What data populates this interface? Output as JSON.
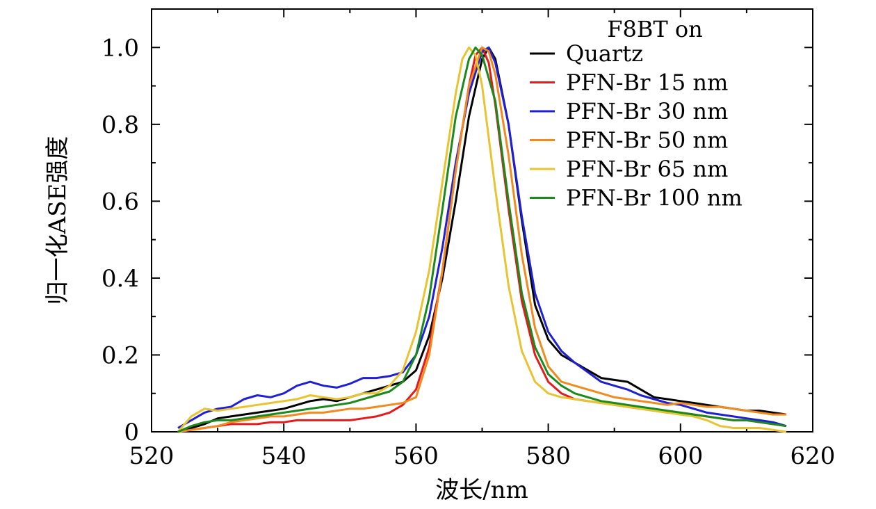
{
  "chart_data": {
    "type": "line",
    "xlabel": "波长/nm",
    "ylabel": "归一化ASE强度",
    "xlim": [
      520,
      620
    ],
    "ylim": [
      0,
      1.1
    ],
    "xticks": [
      "520",
      "540",
      "560",
      "580",
      "600",
      "620"
    ],
    "yticks": [
      "0",
      "0.2",
      "0.4",
      "0.6",
      "0.8",
      "1.0"
    ],
    "grid": false,
    "legend": {
      "title": "F8BT on",
      "position": "top-right"
    },
    "series": [
      {
        "name": "Quartz",
        "color": "#000000",
        "points": [
          [
            524,
            0.0
          ],
          [
            526,
            0.01
          ],
          [
            528,
            0.02
          ],
          [
            530,
            0.035
          ],
          [
            532,
            0.04
          ],
          [
            534,
            0.045
          ],
          [
            536,
            0.05
          ],
          [
            538,
            0.055
          ],
          [
            540,
            0.06
          ],
          [
            542,
            0.07
          ],
          [
            544,
            0.08
          ],
          [
            546,
            0.085
          ],
          [
            548,
            0.08
          ],
          [
            550,
            0.09
          ],
          [
            552,
            0.1
          ],
          [
            554,
            0.11
          ],
          [
            556,
            0.12
          ],
          [
            558,
            0.13
          ],
          [
            560,
            0.16
          ],
          [
            562,
            0.25
          ],
          [
            564,
            0.4
          ],
          [
            566,
            0.6
          ],
          [
            568,
            0.82
          ],
          [
            570,
            0.97
          ],
          [
            571,
            1.0
          ],
          [
            572,
            0.97
          ],
          [
            574,
            0.8
          ],
          [
            576,
            0.55
          ],
          [
            578,
            0.33
          ],
          [
            580,
            0.24
          ],
          [
            582,
            0.2
          ],
          [
            584,
            0.18
          ],
          [
            586,
            0.16
          ],
          [
            588,
            0.14
          ],
          [
            590,
            0.135
          ],
          [
            592,
            0.13
          ],
          [
            594,
            0.11
          ],
          [
            596,
            0.09
          ],
          [
            598,
            0.085
          ],
          [
            600,
            0.08
          ],
          [
            602,
            0.075
          ],
          [
            604,
            0.07
          ],
          [
            606,
            0.065
          ],
          [
            608,
            0.06
          ],
          [
            610,
            0.055
          ],
          [
            612,
            0.055
          ],
          [
            614,
            0.05
          ],
          [
            616,
            0.045
          ]
        ]
      },
      {
        "name": "PFN-Br 15 nm",
        "color": "#e41a1c",
        "points": [
          [
            524,
            0.0
          ],
          [
            526,
            0.005
          ],
          [
            528,
            0.01
          ],
          [
            530,
            0.015
          ],
          [
            532,
            0.02
          ],
          [
            534,
            0.02
          ],
          [
            536,
            0.02
          ],
          [
            538,
            0.025
          ],
          [
            540,
            0.025
          ],
          [
            542,
            0.03
          ],
          [
            544,
            0.03
          ],
          [
            546,
            0.03
          ],
          [
            548,
            0.03
          ],
          [
            550,
            0.03
          ],
          [
            552,
            0.035
          ],
          [
            554,
            0.04
          ],
          [
            556,
            0.05
          ],
          [
            558,
            0.07
          ],
          [
            560,
            0.11
          ],
          [
            562,
            0.22
          ],
          [
            564,
            0.42
          ],
          [
            566,
            0.68
          ],
          [
            568,
            0.9
          ],
          [
            569,
            0.98
          ],
          [
            570,
            1.0
          ],
          [
            571,
            0.96
          ],
          [
            572,
            0.85
          ],
          [
            574,
            0.58
          ],
          [
            576,
            0.34
          ],
          [
            578,
            0.2
          ],
          [
            580,
            0.13
          ],
          [
            582,
            0.1
          ],
          [
            584,
            0.085
          ],
          [
            586,
            0.08
          ],
          [
            588,
            0.075
          ],
          [
            590,
            0.07
          ],
          [
            592,
            0.065
          ],
          [
            594,
            0.06
          ],
          [
            596,
            0.055
          ],
          [
            598,
            0.05
          ],
          [
            600,
            0.05
          ],
          [
            602,
            0.045
          ],
          [
            604,
            0.04
          ],
          [
            606,
            0.035
          ],
          [
            608,
            0.03
          ],
          [
            610,
            0.03
          ],
          [
            612,
            0.025
          ],
          [
            614,
            0.02
          ],
          [
            616,
            0.015
          ]
        ]
      },
      {
        "name": "PFN-Br 30 nm",
        "color": "#1f1fd6",
        "points": [
          [
            524,
            0.01
          ],
          [
            526,
            0.03
          ],
          [
            528,
            0.05
          ],
          [
            530,
            0.06
          ],
          [
            532,
            0.065
          ],
          [
            534,
            0.085
          ],
          [
            536,
            0.095
          ],
          [
            538,
            0.09
          ],
          [
            540,
            0.1
          ],
          [
            542,
            0.12
          ],
          [
            544,
            0.13
          ],
          [
            546,
            0.12
          ],
          [
            548,
            0.115
          ],
          [
            550,
            0.125
          ],
          [
            552,
            0.14
          ],
          [
            554,
            0.14
          ],
          [
            556,
            0.145
          ],
          [
            558,
            0.155
          ],
          [
            560,
            0.2
          ],
          [
            562,
            0.3
          ],
          [
            564,
            0.48
          ],
          [
            566,
            0.7
          ],
          [
            568,
            0.88
          ],
          [
            570,
            0.99
          ],
          [
            571,
            1.0
          ],
          [
            572,
            0.96
          ],
          [
            574,
            0.8
          ],
          [
            576,
            0.56
          ],
          [
            578,
            0.36
          ],
          [
            580,
            0.26
          ],
          [
            582,
            0.21
          ],
          [
            584,
            0.18
          ],
          [
            586,
            0.155
          ],
          [
            588,
            0.13
          ],
          [
            590,
            0.12
          ],
          [
            592,
            0.11
          ],
          [
            594,
            0.095
          ],
          [
            596,
            0.085
          ],
          [
            598,
            0.075
          ],
          [
            600,
            0.07
          ],
          [
            602,
            0.06
          ],
          [
            604,
            0.05
          ],
          [
            606,
            0.045
          ],
          [
            608,
            0.04
          ],
          [
            610,
            0.035
          ],
          [
            612,
            0.03
          ],
          [
            614,
            0.025
          ],
          [
            616,
            0.015
          ]
        ]
      },
      {
        "name": "PFN-Br 50 nm",
        "color": "#f28a1e",
        "points": [
          [
            524,
            0.0
          ],
          [
            526,
            0.005
          ],
          [
            528,
            0.01
          ],
          [
            530,
            0.015
          ],
          [
            532,
            0.025
          ],
          [
            534,
            0.03
          ],
          [
            536,
            0.035
          ],
          [
            538,
            0.04
          ],
          [
            540,
            0.04
          ],
          [
            542,
            0.045
          ],
          [
            544,
            0.05
          ],
          [
            546,
            0.05
          ],
          [
            548,
            0.055
          ],
          [
            550,
            0.06
          ],
          [
            552,
            0.06
          ],
          [
            554,
            0.065
          ],
          [
            556,
            0.07
          ],
          [
            558,
            0.075
          ],
          [
            560,
            0.09
          ],
          [
            562,
            0.2
          ],
          [
            564,
            0.42
          ],
          [
            566,
            0.68
          ],
          [
            568,
            0.9
          ],
          [
            570,
            1.0
          ],
          [
            571,
            0.99
          ],
          [
            572,
            0.93
          ],
          [
            574,
            0.72
          ],
          [
            576,
            0.46
          ],
          [
            578,
            0.27
          ],
          [
            580,
            0.17
          ],
          [
            582,
            0.13
          ],
          [
            584,
            0.12
          ],
          [
            586,
            0.11
          ],
          [
            588,
            0.1
          ],
          [
            590,
            0.09
          ],
          [
            592,
            0.085
          ],
          [
            594,
            0.08
          ],
          [
            596,
            0.075
          ],
          [
            598,
            0.07
          ],
          [
            600,
            0.075
          ],
          [
            602,
            0.07
          ],
          [
            604,
            0.065
          ],
          [
            606,
            0.065
          ],
          [
            608,
            0.06
          ],
          [
            610,
            0.055
          ],
          [
            612,
            0.05
          ],
          [
            614,
            0.045
          ],
          [
            616,
            0.045
          ]
        ]
      },
      {
        "name": "PFN-Br 65 nm",
        "color": "#e8c430",
        "points": [
          [
            524,
            0.0
          ],
          [
            526,
            0.04
          ],
          [
            528,
            0.06
          ],
          [
            530,
            0.055
          ],
          [
            532,
            0.06
          ],
          [
            534,
            0.065
          ],
          [
            536,
            0.07
          ],
          [
            538,
            0.075
          ],
          [
            540,
            0.08
          ],
          [
            542,
            0.085
          ],
          [
            544,
            0.095
          ],
          [
            546,
            0.09
          ],
          [
            548,
            0.085
          ],
          [
            550,
            0.09
          ],
          [
            552,
            0.1
          ],
          [
            554,
            0.1
          ],
          [
            556,
            0.12
          ],
          [
            558,
            0.16
          ],
          [
            560,
            0.26
          ],
          [
            562,
            0.42
          ],
          [
            564,
            0.65
          ],
          [
            566,
            0.88
          ],
          [
            567,
            0.97
          ],
          [
            568,
            1.0
          ],
          [
            569,
            0.98
          ],
          [
            570,
            0.9
          ],
          [
            572,
            0.63
          ],
          [
            574,
            0.38
          ],
          [
            576,
            0.21
          ],
          [
            578,
            0.13
          ],
          [
            580,
            0.1
          ],
          [
            582,
            0.09
          ],
          [
            584,
            0.085
          ],
          [
            586,
            0.08
          ],
          [
            588,
            0.075
          ],
          [
            590,
            0.07
          ],
          [
            592,
            0.065
          ],
          [
            594,
            0.06
          ],
          [
            596,
            0.055
          ],
          [
            598,
            0.05
          ],
          [
            600,
            0.045
          ],
          [
            602,
            0.04
          ],
          [
            604,
            0.03
          ],
          [
            606,
            0.015
          ],
          [
            608,
            0.01
          ],
          [
            610,
            0.01
          ],
          [
            612,
            0.01
          ],
          [
            614,
            0.005
          ],
          [
            616,
            0.0
          ]
        ]
      },
      {
        "name": "PFN-Br 100 nm",
        "color": "#1a8a1a",
        "points": [
          [
            524,
            0.0
          ],
          [
            526,
            0.015
          ],
          [
            528,
            0.025
          ],
          [
            530,
            0.03
          ],
          [
            532,
            0.03
          ],
          [
            534,
            0.035
          ],
          [
            536,
            0.04
          ],
          [
            538,
            0.045
          ],
          [
            540,
            0.05
          ],
          [
            542,
            0.055
          ],
          [
            544,
            0.06
          ],
          [
            546,
            0.065
          ],
          [
            548,
            0.07
          ],
          [
            550,
            0.075
          ],
          [
            552,
            0.085
          ],
          [
            554,
            0.095
          ],
          [
            556,
            0.105
          ],
          [
            558,
            0.13
          ],
          [
            560,
            0.2
          ],
          [
            562,
            0.35
          ],
          [
            564,
            0.58
          ],
          [
            566,
            0.82
          ],
          [
            568,
            0.97
          ],
          [
            569,
            1.0
          ],
          [
            570,
            0.98
          ],
          [
            572,
            0.86
          ],
          [
            574,
            0.6
          ],
          [
            576,
            0.36
          ],
          [
            578,
            0.22
          ],
          [
            580,
            0.15
          ],
          [
            582,
            0.12
          ],
          [
            584,
            0.1
          ],
          [
            586,
            0.09
          ],
          [
            588,
            0.08
          ],
          [
            590,
            0.075
          ],
          [
            592,
            0.07
          ],
          [
            594,
            0.065
          ],
          [
            596,
            0.06
          ],
          [
            598,
            0.055
          ],
          [
            600,
            0.05
          ],
          [
            602,
            0.045
          ],
          [
            604,
            0.04
          ],
          [
            606,
            0.035
          ],
          [
            608,
            0.03
          ],
          [
            610,
            0.03
          ],
          [
            612,
            0.025
          ],
          [
            614,
            0.02
          ],
          [
            616,
            0.015
          ]
        ]
      }
    ]
  }
}
